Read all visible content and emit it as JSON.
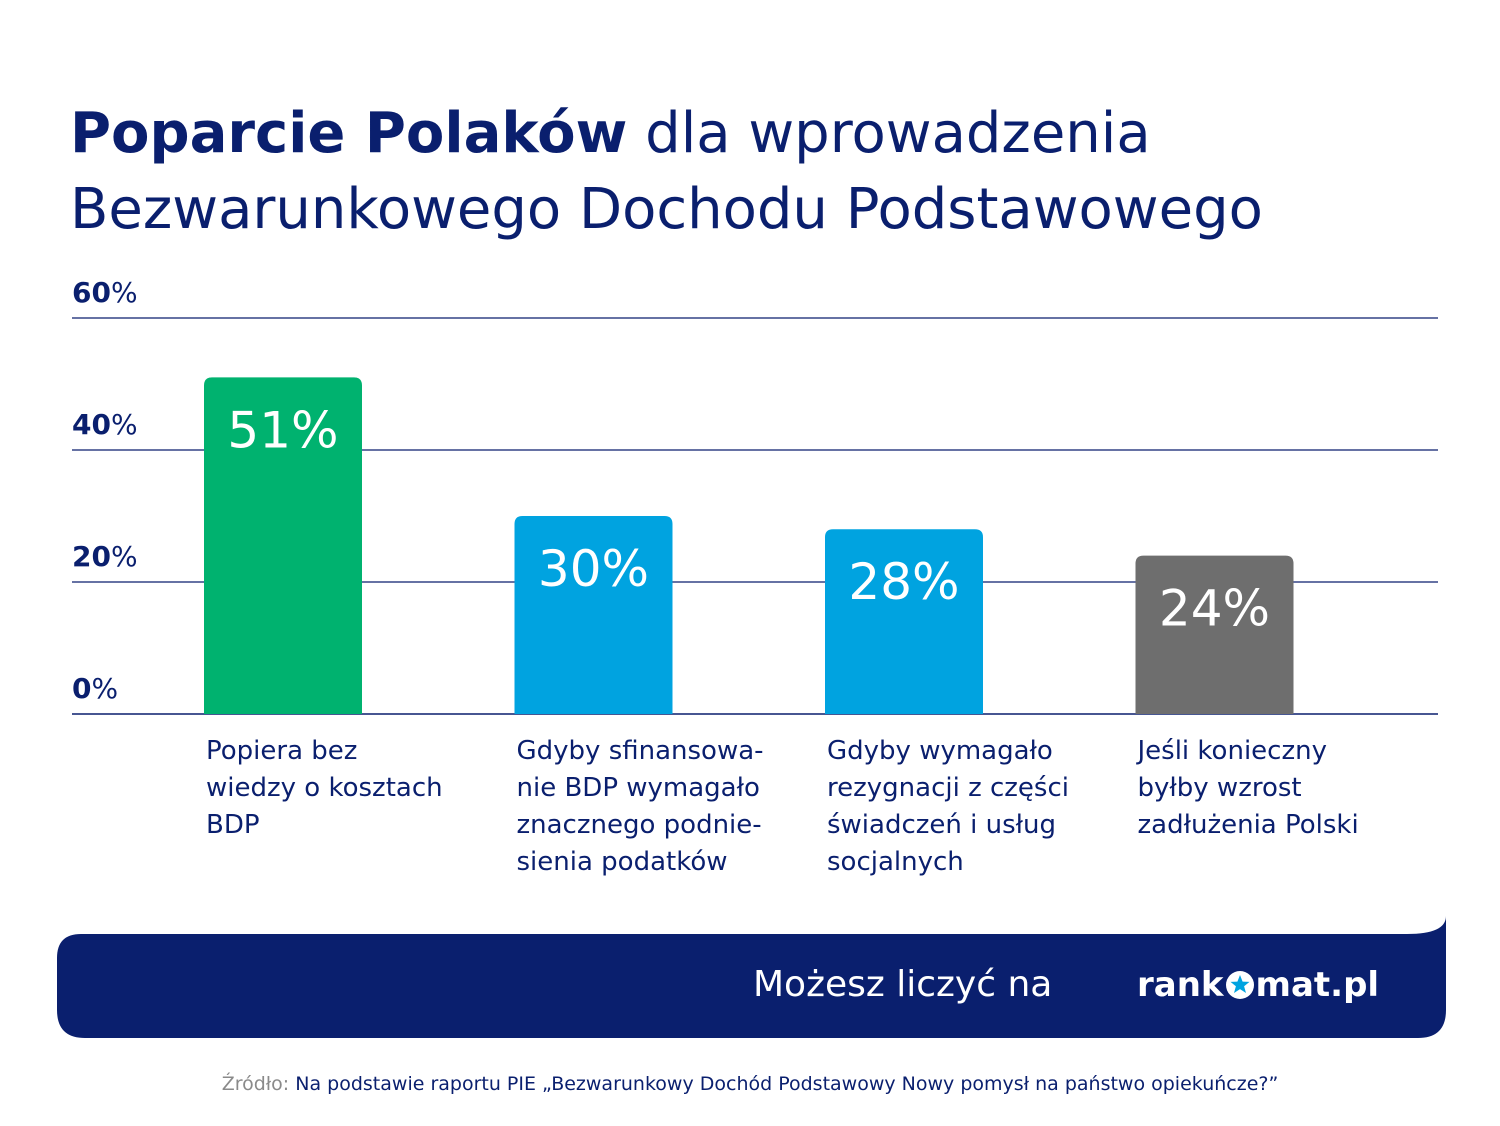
{
  "title": {
    "bold": "Poparcie Polaków",
    "rest": "dla wprowadzenia",
    "line2": "Bezwarunkowego Dochodu Podstawowego"
  },
  "chart_data": {
    "type": "bar",
    "categories": [
      [
        "Popiera bez",
        "wiedzy o kosztach",
        "BDP"
      ],
      [
        "Gdyby sfinansowa-",
        "nie BDP wymagało",
        "znacznego podnie-",
        "sienia podatków"
      ],
      [
        "Gdyby wymagało",
        "rezygnacji z części",
        "świadczeń i usług",
        "socjalnych"
      ],
      [
        "Jeśli konieczny",
        "byłby wzrost",
        "zadłużenia Polski"
      ]
    ],
    "values": [
      51,
      30,
      28,
      24
    ],
    "data_labels": [
      "51%",
      "30%",
      "28%",
      "24%"
    ],
    "bar_colors": [
      "#00b26f",
      "#00a3e0",
      "#00a3e0",
      "#6e6e6e"
    ],
    "ylim": [
      0,
      60
    ],
    "yticks": [
      {
        "value": 0,
        "num": "0",
        "unit": "%"
      },
      {
        "value": 20,
        "num": "20",
        "unit": "%"
      },
      {
        "value": 40,
        "num": "40",
        "unit": "%"
      },
      {
        "value": 60,
        "num": "60",
        "unit": "%"
      }
    ],
    "grid": true,
    "grid_color": "#0a1f6e"
  },
  "banner": {
    "slogan": "Możesz liczyć na",
    "logo_left": "rank",
    "logo_right": "mat.pl",
    "logo_icon": "star-icon",
    "background": "#0a1f6e"
  },
  "source": {
    "lead": "Źródło:",
    "text": "Na podstawie raportu PIE „Bezwarunkowy Dochód Podstawowy Nowy pomysł na państwo opiekuńcze?”"
  }
}
